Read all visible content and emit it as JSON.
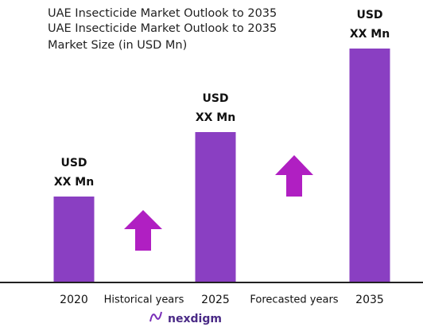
{
  "chart_data": {
    "type": "bar",
    "title": "UAE Insecticide Market Outlook to 2035",
    "subtitle": "UAE Insecticide Market Outlook to 2035",
    "y_label": "Market Size (in USD Mn)",
    "categories": [
      "2020",
      "2025",
      "2035"
    ],
    "values": [
      107,
      188,
      293
    ],
    "value_labels": [
      [
        "USD",
        "XX Mn"
      ],
      [
        "USD",
        "XX Mn"
      ],
      [
        "USD",
        "XX Mn"
      ]
    ],
    "color": "#8a3fc2",
    "annotations": [
      "Historical years",
      "Forecasted years"
    ],
    "brand": "nexdigm"
  }
}
